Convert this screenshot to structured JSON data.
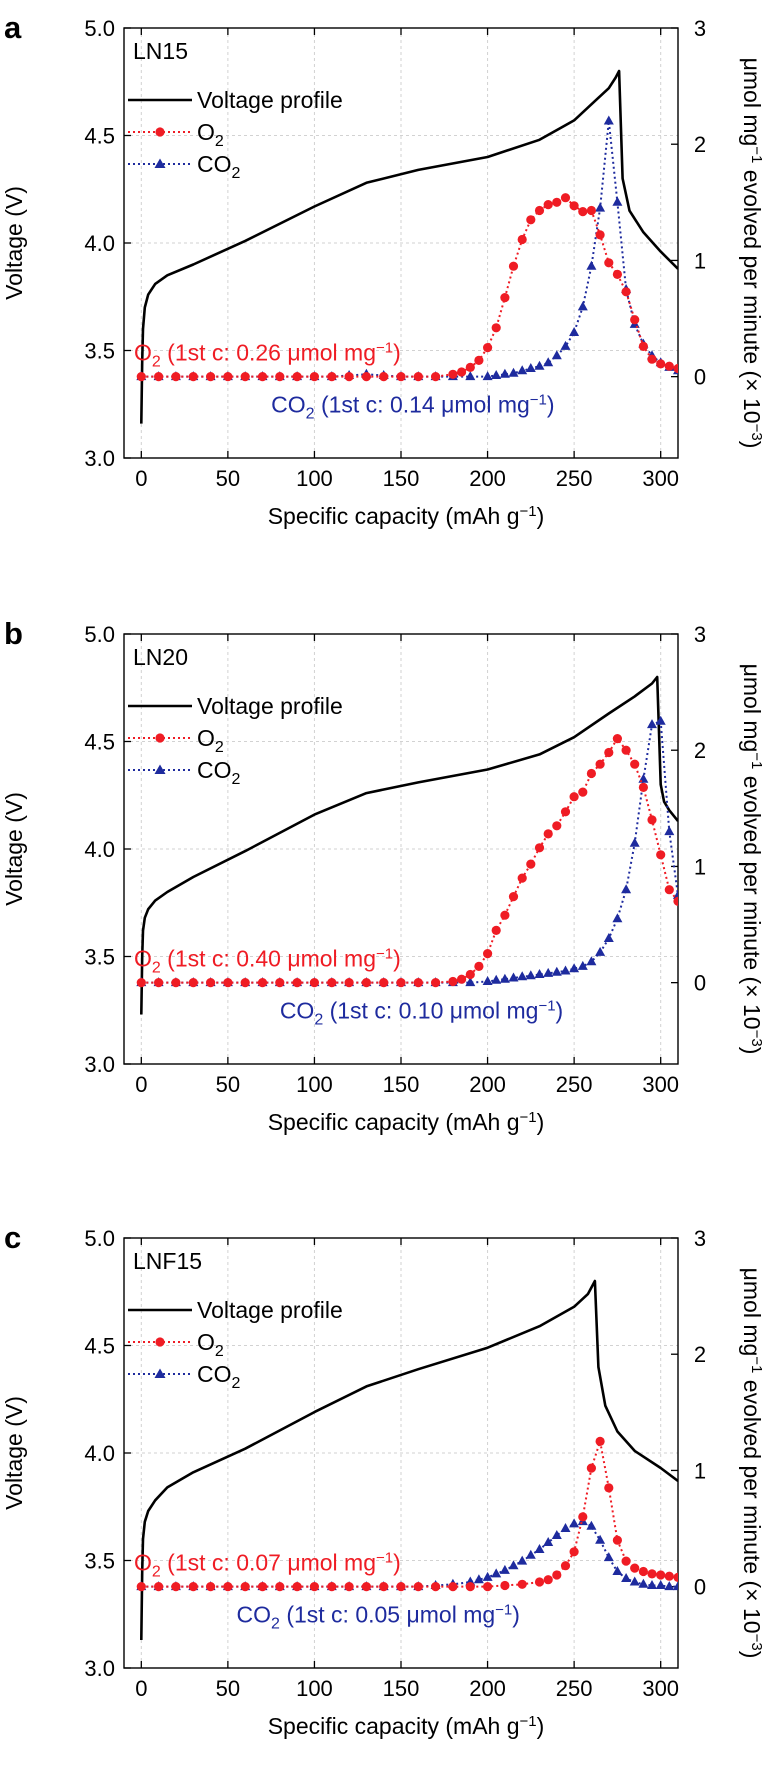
{
  "colors": {
    "o2": "#ef1c24",
    "co2": "#1e2b9e",
    "voltage": "#000000",
    "grid": "#d2d2d2"
  },
  "shared": {
    "xlabel_main": "Specific capacity (mAh g",
    "xlabel_sup": "−1",
    "xlabel_close": ")",
    "ylabel_left": "Voltage (V)",
    "ylabel_right_a": "μmol mg",
    "ylabel_right_sup1": "−1",
    "ylabel_right_b": " evolved per minute (× 10",
    "ylabel_right_sup2": "−3",
    "ylabel_right_c": ")",
    "legend_voltage": "Voltage profile",
    "legend_o2_main": "O",
    "legend_co2_main": "CO",
    "sub2": "2",
    "anno_prefix": " (1st c: ",
    "anno_unit": " μmol mg",
    "anno_sup": "−1",
    "anno_close": ")"
  },
  "panels": [
    {
      "letter": "a",
      "name": "LN15",
      "o2_total": "0.26",
      "co2_total": "0.14"
    },
    {
      "letter": "b",
      "name": "LN20",
      "o2_total": "0.40",
      "co2_total": "0.10"
    },
    {
      "letter": "c",
      "name": "LNF15",
      "o2_total": "0.07",
      "co2_total": "0.05"
    }
  ],
  "chart_data": [
    {
      "type": "line",
      "title": "LN15",
      "xlabel": "Specific capacity (mAh g−1)",
      "ylabel": "Voltage (V)",
      "y2label": "μmol mg−1 evolved per minute (× 10−3)",
      "xlim": [
        -10,
        310
      ],
      "ylim": [
        3.0,
        5.0
      ],
      "y2lim": [
        -0.7,
        3.0
      ],
      "xticks": [
        0,
        50,
        100,
        150,
        200,
        250,
        300
      ],
      "yticks": [
        "3.0",
        "3.5",
        "4.0",
        "4.5",
        "5.0"
      ],
      "y2ticks": [
        "0",
        "1",
        "2",
        "3"
      ],
      "grid": true,
      "legend": "top-left",
      "voltage": {
        "name": "Voltage profile",
        "x": [
          0,
          0.5,
          1,
          2,
          4,
          8,
          15,
          30,
          60,
          100,
          130,
          160,
          200,
          230,
          250,
          262,
          270,
          274,
          276,
          278,
          282,
          290,
          300,
          310
        ],
        "y": [
          3.16,
          3.45,
          3.6,
          3.7,
          3.76,
          3.81,
          3.85,
          3.9,
          4.01,
          4.17,
          4.28,
          4.34,
          4.4,
          4.48,
          4.57,
          4.66,
          4.72,
          4.77,
          4.8,
          4.3,
          4.15,
          4.05,
          3.96,
          3.88
        ]
      },
      "o2": {
        "name": "O2",
        "total": "0.26 μmol mg−1 (1st c)",
        "x": [
          0,
          10,
          20,
          30,
          40,
          50,
          60,
          70,
          80,
          90,
          100,
          110,
          120,
          130,
          140,
          150,
          160,
          170,
          180,
          185,
          190,
          195,
          200,
          205,
          210,
          215,
          220,
          225,
          230,
          235,
          240,
          245,
          250,
          255,
          260,
          265,
          270,
          275,
          280,
          285,
          290,
          295,
          300,
          305,
          310
        ],
        "y": [
          0,
          0,
          0,
          0,
          0,
          0,
          0,
          0,
          0,
          0,
          0,
          0,
          0,
          0,
          0,
          0,
          0,
          0,
          0.02,
          0.04,
          0.08,
          0.14,
          0.25,
          0.42,
          0.68,
          0.95,
          1.18,
          1.35,
          1.43,
          1.48,
          1.5,
          1.54,
          1.47,
          1.42,
          1.43,
          1.22,
          0.98,
          0.88,
          0.73,
          0.49,
          0.26,
          0.15,
          0.11,
          0.09,
          0.07
        ]
      },
      "co2": {
        "name": "CO2",
        "total": "0.14 μmol mg−1 (1st c)",
        "x": [
          0,
          10,
          20,
          30,
          40,
          50,
          60,
          70,
          80,
          90,
          100,
          110,
          120,
          130,
          140,
          150,
          160,
          170,
          180,
          190,
          200,
          205,
          210,
          215,
          220,
          225,
          230,
          235,
          240,
          245,
          250,
          255,
          260,
          265,
          270,
          275,
          280,
          285,
          290,
          295,
          300,
          305,
          310
        ],
        "y": [
          0,
          0,
          0,
          0,
          0,
          0,
          0,
          0,
          0,
          0,
          0,
          0,
          0.01,
          0.02,
          0.01,
          0,
          0,
          0,
          0,
          0,
          0,
          0.01,
          0.02,
          0.03,
          0.05,
          0.07,
          0.09,
          0.12,
          0.18,
          0.26,
          0.38,
          0.6,
          0.95,
          1.45,
          2.2,
          1.5,
          0.75,
          0.45,
          0.28,
          0.18,
          0.12,
          0.08,
          0.05
        ]
      }
    },
    {
      "type": "line",
      "title": "LN20",
      "xlabel": "Specific capacity (mAh g−1)",
      "ylabel": "Voltage (V)",
      "y2label": "μmol mg−1 evolved per minute (× 10−3)",
      "xlim": [
        -10,
        310
      ],
      "ylim": [
        3.0,
        5.0
      ],
      "y2lim": [
        -0.7,
        3.0
      ],
      "xticks": [
        0,
        50,
        100,
        150,
        200,
        250,
        300
      ],
      "yticks": [
        "3.0",
        "3.5",
        "4.0",
        "4.5",
        "5.0"
      ],
      "y2ticks": [
        "0",
        "1",
        "2",
        "3"
      ],
      "grid": true,
      "legend": "top-left",
      "voltage": {
        "name": "Voltage profile",
        "x": [
          0,
          0.5,
          1,
          2,
          4,
          8,
          15,
          30,
          60,
          100,
          130,
          160,
          200,
          230,
          250,
          270,
          285,
          295,
          298,
          300,
          302,
          305,
          310
        ],
        "y": [
          3.23,
          3.5,
          3.62,
          3.68,
          3.72,
          3.76,
          3.8,
          3.87,
          3.99,
          4.16,
          4.26,
          4.31,
          4.37,
          4.44,
          4.52,
          4.63,
          4.71,
          4.77,
          4.8,
          4.3,
          4.22,
          4.18,
          4.13
        ]
      },
      "o2": {
        "name": "O2",
        "total": "0.40 μmol mg−1 (1st c)",
        "x": [
          0,
          10,
          20,
          30,
          40,
          50,
          60,
          70,
          80,
          90,
          100,
          110,
          120,
          130,
          140,
          150,
          160,
          170,
          180,
          185,
          190,
          195,
          200,
          205,
          210,
          215,
          220,
          225,
          230,
          235,
          240,
          245,
          250,
          255,
          260,
          265,
          270,
          275,
          280,
          285,
          290,
          295,
          300,
          305,
          310
        ],
        "y": [
          0,
          0,
          0,
          0,
          0,
          0,
          0,
          0,
          0,
          0,
          0,
          0,
          0,
          0,
          0,
          0,
          0,
          0,
          0.01,
          0.03,
          0.07,
          0.14,
          0.25,
          0.45,
          0.58,
          0.74,
          0.9,
          1.02,
          1.16,
          1.28,
          1.35,
          1.47,
          1.6,
          1.64,
          1.8,
          1.88,
          1.98,
          2.1,
          2.0,
          1.88,
          1.68,
          1.4,
          1.1,
          0.8,
          0.7
        ]
      },
      "co2": {
        "name": "CO2",
        "total": "0.10 μmol mg−1 (1st c)",
        "x": [
          0,
          10,
          20,
          30,
          40,
          50,
          60,
          70,
          80,
          90,
          100,
          110,
          120,
          130,
          140,
          150,
          160,
          170,
          180,
          190,
          200,
          205,
          210,
          215,
          220,
          225,
          230,
          235,
          240,
          245,
          250,
          255,
          260,
          265,
          270,
          275,
          280,
          285,
          290,
          295,
          300,
          305,
          310
        ],
        "y": [
          0,
          0,
          0,
          0,
          0,
          0,
          0,
          0,
          0,
          0,
          0,
          0,
          0,
          0,
          0,
          0,
          0,
          0,
          0,
          0,
          0.01,
          0.02,
          0.03,
          0.04,
          0.05,
          0.06,
          0.07,
          0.08,
          0.09,
          0.1,
          0.12,
          0.14,
          0.18,
          0.26,
          0.38,
          0.55,
          0.8,
          1.2,
          1.75,
          2.22,
          2.25,
          1.3,
          0.75
        ]
      }
    },
    {
      "type": "line",
      "title": "LNF15",
      "xlabel": "Specific capacity (mAh g−1)",
      "ylabel": "Voltage (V)",
      "y2label": "μmol mg−1 evolved per minute (× 10−3)",
      "xlim": [
        -10,
        310
      ],
      "ylim": [
        3.0,
        5.0
      ],
      "y2lim": [
        -0.7,
        3.0
      ],
      "xticks": [
        0,
        50,
        100,
        150,
        200,
        250,
        300
      ],
      "yticks": [
        "3.0",
        "3.5",
        "4.0",
        "4.5",
        "5.0"
      ],
      "y2ticks": [
        "0",
        "1",
        "2",
        "3"
      ],
      "grid": true,
      "legend": "top-left",
      "voltage": {
        "name": "Voltage profile",
        "x": [
          0,
          0.5,
          1,
          2,
          4,
          8,
          15,
          30,
          60,
          100,
          130,
          160,
          200,
          230,
          250,
          258,
          262,
          264,
          268,
          275,
          285,
          300,
          310
        ],
        "y": [
          3.13,
          3.45,
          3.6,
          3.68,
          3.73,
          3.78,
          3.84,
          3.91,
          4.02,
          4.19,
          4.31,
          4.39,
          4.49,
          4.59,
          4.68,
          4.74,
          4.8,
          4.4,
          4.22,
          4.1,
          4.01,
          3.93,
          3.87
        ]
      },
      "o2": {
        "name": "O2",
        "total": "0.07 μmol mg−1 (1st c)",
        "x": [
          0,
          10,
          20,
          30,
          40,
          50,
          60,
          70,
          80,
          90,
          100,
          110,
          120,
          130,
          140,
          150,
          160,
          170,
          180,
          190,
          200,
          210,
          220,
          230,
          235,
          240,
          245,
          250,
          255,
          260,
          265,
          270,
          275,
          280,
          285,
          290,
          295,
          300,
          305,
          310
        ],
        "y": [
          0,
          0,
          0,
          0,
          0,
          0,
          0,
          0,
          0,
          0,
          0,
          0,
          0,
          0,
          0,
          0,
          0,
          0,
          0,
          0,
          0,
          0.01,
          0.02,
          0.04,
          0.06,
          0.1,
          0.18,
          0.3,
          0.6,
          1.02,
          1.25,
          0.85,
          0.4,
          0.22,
          0.16,
          0.13,
          0.11,
          0.1,
          0.09,
          0.08
        ]
      },
      "co2": {
        "name": "CO2",
        "total": "0.05 μmol mg−1 (1st c)",
        "x": [
          0,
          10,
          20,
          30,
          40,
          50,
          60,
          70,
          80,
          90,
          100,
          110,
          120,
          130,
          140,
          150,
          160,
          170,
          180,
          190,
          195,
          200,
          205,
          210,
          215,
          220,
          225,
          230,
          235,
          240,
          245,
          250,
          255,
          260,
          265,
          270,
          275,
          280,
          285,
          290,
          295,
          300,
          305,
          310
        ],
        "y": [
          0,
          0,
          0,
          0,
          0,
          0,
          0,
          0,
          0,
          0,
          0,
          0,
          0,
          0,
          0,
          0,
          0,
          0.01,
          0.02,
          0.04,
          0.06,
          0.08,
          0.11,
          0.14,
          0.18,
          0.22,
          0.27,
          0.32,
          0.38,
          0.44,
          0.5,
          0.54,
          0.56,
          0.52,
          0.4,
          0.25,
          0.13,
          0.07,
          0.04,
          0.02,
          0.01,
          0.01,
          0.0,
          0.0
        ]
      }
    }
  ]
}
